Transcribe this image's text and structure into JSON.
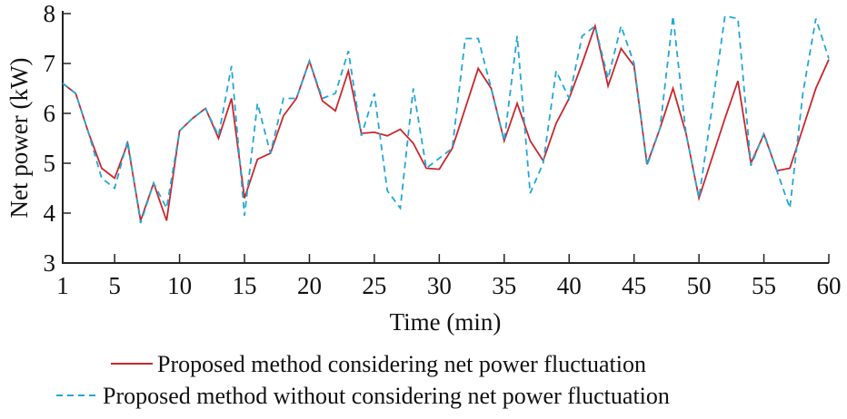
{
  "chart_data": {
    "type": "line",
    "title": "",
    "xlabel": "Time (min)",
    "ylabel": "Net power (kW)",
    "xlim": [
      1,
      60
    ],
    "ylim": [
      3,
      8
    ],
    "xticks": [
      1,
      5,
      10,
      15,
      20,
      25,
      30,
      35,
      40,
      45,
      50,
      55,
      60
    ],
    "yticks": [
      3,
      4,
      5,
      6,
      7,
      8
    ],
    "grid": false,
    "legend_placement": "bottom",
    "x": [
      1,
      2,
      3,
      4,
      5,
      6,
      7,
      8,
      9,
      10,
      11,
      12,
      13,
      14,
      15,
      16,
      17,
      18,
      19,
      20,
      21,
      22,
      23,
      24,
      25,
      26,
      27,
      28,
      29,
      30,
      31,
      32,
      33,
      34,
      35,
      36,
      37,
      38,
      39,
      40,
      41,
      42,
      43,
      44,
      45,
      46,
      47,
      48,
      49,
      50,
      51,
      52,
      53,
      54,
      55,
      56,
      57,
      58,
      59,
      60
    ],
    "series": [
      {
        "name": "Proposed method considering net power fluctuation",
        "color": "#c8272d",
        "style": "solid",
        "values": [
          6.6,
          6.4,
          5.6,
          4.9,
          4.7,
          5.4,
          3.85,
          4.6,
          3.85,
          5.65,
          5.9,
          6.1,
          5.5,
          6.3,
          4.3,
          5.08,
          5.2,
          5.95,
          6.3,
          7.05,
          6.25,
          6.05,
          6.85,
          5.6,
          5.62,
          5.55,
          5.68,
          5.4,
          4.9,
          4.88,
          5.3,
          6.1,
          6.9,
          6.5,
          5.45,
          6.2,
          5.45,
          5.05,
          5.8,
          6.3,
          7.0,
          7.75,
          6.55,
          7.3,
          6.95,
          4.98,
          5.7,
          6.5,
          5.6,
          4.3,
          5.1,
          5.9,
          6.65,
          5.0,
          5.58,
          4.85,
          4.9,
          5.7,
          6.5,
          7.08
        ]
      },
      {
        "name": "Proposed method without considering net power fluctuation",
        "color": "#22a7d8",
        "style": "dashed",
        "values": [
          6.6,
          6.4,
          5.6,
          4.7,
          4.5,
          5.45,
          3.8,
          4.6,
          4.1,
          5.65,
          5.9,
          6.1,
          5.55,
          6.95,
          3.95,
          6.2,
          5.2,
          6.3,
          6.3,
          7.05,
          6.3,
          6.4,
          7.25,
          5.55,
          6.4,
          4.45,
          4.1,
          6.5,
          4.9,
          5.1,
          5.3,
          7.5,
          7.5,
          6.5,
          5.45,
          7.55,
          4.4,
          5.0,
          6.85,
          6.3,
          7.55,
          7.75,
          6.7,
          7.75,
          7.0,
          4.95,
          5.7,
          7.95,
          5.6,
          4.3,
          6.1,
          7.95,
          7.9,
          4.95,
          5.6,
          4.85,
          4.1,
          6.4,
          7.9,
          7.1
        ]
      }
    ]
  }
}
